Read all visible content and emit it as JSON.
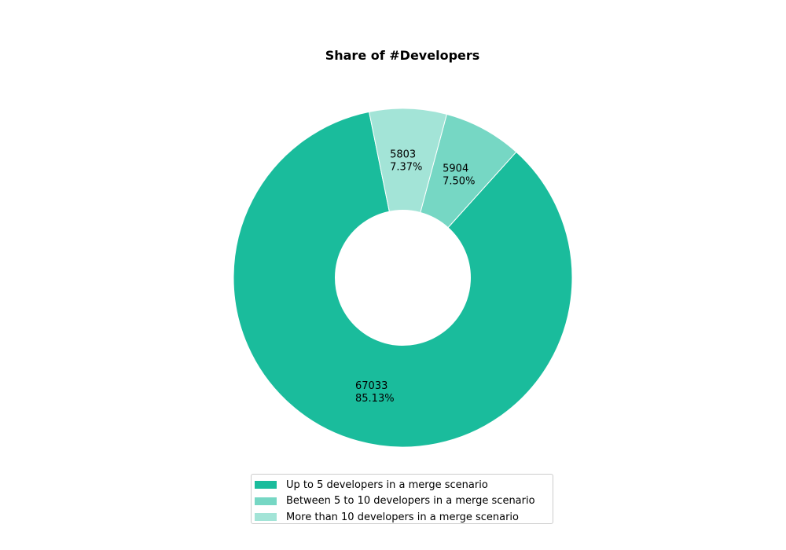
{
  "chart_data": {
    "type": "pie",
    "donut": true,
    "title": "Share of #Developers",
    "start_angle_deg": 101.5,
    "counterclockwise": true,
    "legend_position": "bottom-center",
    "slices": [
      {
        "label": "Up to 5 developers in a merge scenario",
        "value": 67033,
        "percent_label": "85.13%",
        "color": "#1abc9c"
      },
      {
        "label": "Between 5 to 10 developers in a merge scenario",
        "value": 5904,
        "percent_label": "7.50%",
        "color": "#76d7c4"
      },
      {
        "label": "More than 10 developers in a merge scenario",
        "value": 5803,
        "percent_label": "7.37%",
        "color": "#a3e4d7"
      }
    ]
  }
}
